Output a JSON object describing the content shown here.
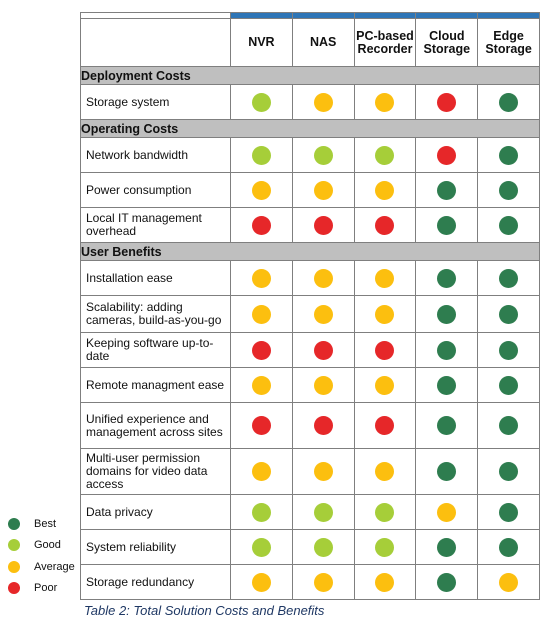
{
  "colors": {
    "best": "#2e7d4f",
    "good": "#a6ce39",
    "average": "#fcbf0f",
    "poor": "#e62729",
    "accent": "#2e75b6",
    "section": "#bfbfbf"
  },
  "columns": [
    "NVR",
    "NAS",
    "PC-based Recorder",
    "Cloud Storage",
    "Edge Storage"
  ],
  "sections": [
    {
      "title": "Deployment Costs",
      "rows": [
        {
          "label": "Storage system",
          "ratings": [
            "good",
            "average",
            "average",
            "poor",
            "best"
          ]
        }
      ]
    },
    {
      "title": "Operating Costs",
      "rows": [
        {
          "label": "Network bandwidth",
          "ratings": [
            "good",
            "good",
            "good",
            "poor",
            "best"
          ]
        },
        {
          "label": "Power consumption",
          "ratings": [
            "average",
            "average",
            "average",
            "best",
            "best"
          ]
        },
        {
          "label": "Local IT management overhead",
          "ratings": [
            "poor",
            "poor",
            "poor",
            "best",
            "best"
          ]
        }
      ]
    },
    {
      "title": "User Benefits",
      "rows": [
        {
          "label": "Installation ease",
          "ratings": [
            "average",
            "average",
            "average",
            "best",
            "best"
          ]
        },
        {
          "label": "Scalability: adding cameras, build-as-you-go",
          "ratings": [
            "average",
            "average",
            "average",
            "best",
            "best"
          ]
        },
        {
          "label": "Keeping software up-to-date",
          "ratings": [
            "poor",
            "poor",
            "poor",
            "best",
            "best"
          ]
        },
        {
          "label": "Remote managment ease",
          "ratings": [
            "average",
            "average",
            "average",
            "best",
            "best"
          ]
        },
        {
          "label": "Unified experience and management across sites",
          "ratings": [
            "poor",
            "poor",
            "poor",
            "best",
            "best"
          ]
        },
        {
          "label": "Multi-user permission domains for video data access",
          "ratings": [
            "average",
            "average",
            "average",
            "best",
            "best"
          ]
        },
        {
          "label": "Data privacy",
          "ratings": [
            "good",
            "good",
            "good",
            "average",
            "best"
          ]
        },
        {
          "label": "System reliability",
          "ratings": [
            "good",
            "good",
            "good",
            "best",
            "best"
          ]
        },
        {
          "label": "Storage redundancy",
          "ratings": [
            "average",
            "average",
            "average",
            "best",
            "average"
          ]
        }
      ]
    }
  ],
  "legend": [
    {
      "key": "best",
      "label": "Best"
    },
    {
      "key": "good",
      "label": "Good"
    },
    {
      "key": "average",
      "label": "Average"
    },
    {
      "key": "poor",
      "label": "Poor"
    }
  ],
  "caption": "Table 2: Total Solution Costs and Benefits"
}
